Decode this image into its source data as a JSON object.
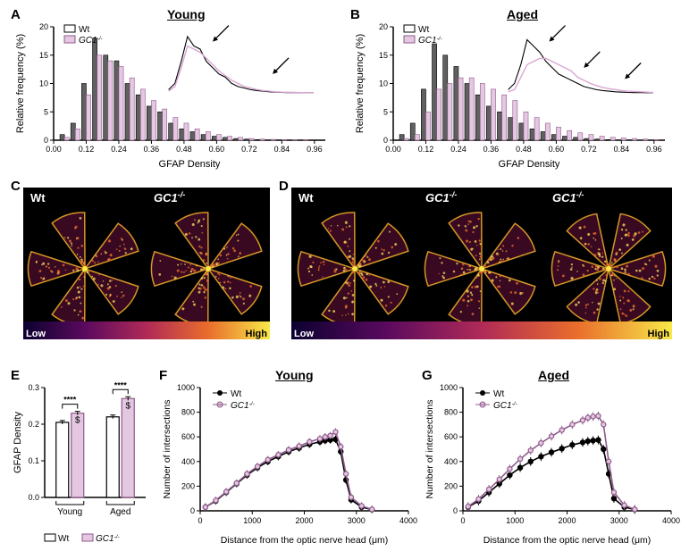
{
  "colors": {
    "wt_fill": "#606060",
    "wt_stroke": "#000000",
    "ko_fill": "#e4c7e0",
    "ko_stroke": "#8e5b8b",
    "wt_line": "#000000",
    "ko_line": "#d9a6d2",
    "image_bg": "#000000",
    "gradient_low": "#0b0030",
    "gradient_mid1": "#5a0a5e",
    "gradient_mid2": "#b02a57",
    "gradient_mid3": "#e96d2c",
    "gradient_high": "#f7e948",
    "petal_inner": "#3d0a24",
    "petal_outer": "#e8a428",
    "petal_speck": "#f3d35a",
    "axis": "#000000",
    "text": "#000000",
    "white": "#ffffff"
  },
  "panelA": {
    "letter": "A",
    "title": "Young",
    "legend": [
      "Wt",
      "GC1-/-"
    ],
    "xlabel": "GFAP Density",
    "ylabel": "Relative frequency (%)",
    "ylim": [
      0,
      20
    ],
    "ytick_step": 5,
    "xticks": [
      0.0,
      0.12,
      0.24,
      0.36,
      0.48,
      0.6,
      0.72,
      0.84,
      0.96
    ],
    "bins": [
      0.04,
      0.08,
      0.12,
      0.16,
      0.2,
      0.24,
      0.28,
      0.32,
      0.36,
      0.4,
      0.44,
      0.48,
      0.52,
      0.56,
      0.6,
      0.64,
      0.68,
      0.72,
      0.76,
      0.8,
      0.84,
      0.88,
      0.92,
      0.96
    ],
    "wt": [
      1,
      3,
      10,
      18,
      15,
      14,
      10,
      8,
      6,
      5,
      3,
      2,
      1.5,
      1,
      0.7,
      0.5,
      0.3,
      0.2,
      0.1,
      0.05,
      0.05,
      0,
      0,
      0
    ],
    "ko": [
      0.5,
      2,
      8,
      15,
      14,
      13,
      11,
      9,
      7,
      5.5,
      4,
      3,
      2,
      1.5,
      1,
      0.7,
      0.5,
      0.3,
      0.2,
      0.15,
      0.1,
      0.05,
      0.05,
      0
    ],
    "inset_arrows": [
      [
        0.32,
        0.82
      ],
      [
        0.7,
        0.3
      ]
    ]
  },
  "panelB": {
    "letter": "B",
    "title": "Aged",
    "legend": [
      "Wt",
      "GC1-/-"
    ],
    "xlabel": "GFAP Density",
    "ylabel": "Relative frequency (%)",
    "ylim": [
      0,
      20
    ],
    "ytick_step": 5,
    "xticks": [
      0.0,
      0.12,
      0.24,
      0.36,
      0.48,
      0.6,
      0.72,
      0.84,
      0.96
    ],
    "bins": [
      0.04,
      0.08,
      0.12,
      0.16,
      0.2,
      0.24,
      0.28,
      0.32,
      0.36,
      0.4,
      0.44,
      0.48,
      0.52,
      0.56,
      0.6,
      0.64,
      0.68,
      0.72,
      0.76,
      0.8,
      0.84,
      0.88,
      0.92,
      0.96
    ],
    "wt": [
      1,
      3,
      9,
      17,
      15,
      13,
      10,
      8,
      6,
      5,
      4,
      3,
      2,
      1.5,
      1,
      0.7,
      0.5,
      0.3,
      0.2,
      0.1,
      0.05,
      0.05,
      0,
      0
    ],
    "ko": [
      0.3,
      1,
      5,
      9,
      10,
      11,
      11,
      10,
      9,
      8,
      7,
      5,
      4,
      3,
      2.3,
      1.7,
      1.3,
      1,
      0.7,
      0.5,
      0.4,
      0.3,
      0.2,
      0.1
    ],
    "inset_arrows": [
      [
        0.3,
        0.82
      ],
      [
        0.52,
        0.4
      ],
      [
        0.78,
        0.22
      ]
    ]
  },
  "panelC": {
    "letter": "C",
    "labels": [
      "Wt",
      "GC1-/-"
    ],
    "low": "Low",
    "high": "High"
  },
  "panelD": {
    "letter": "D",
    "labels": [
      "Wt",
      "GC1-/-",
      "GC1-/-"
    ],
    "low": "Low",
    "high": "High"
  },
  "panelE": {
    "letter": "E",
    "ylabel": "GFAP Density",
    "groups": [
      "Young",
      "Aged"
    ],
    "legend": [
      "Wt",
      "GC1-/-"
    ],
    "ylim": [
      0,
      0.3
    ],
    "yticks": [
      0,
      0.1,
      0.2,
      0.3
    ],
    "values": {
      "Young": {
        "Wt": 0.205,
        "KO": 0.23
      },
      "Aged": {
        "Wt": 0.22,
        "KO": 0.27
      }
    },
    "err": 0.005,
    "stars": [
      "****",
      "****"
    ],
    "dollar": "$"
  },
  "panelF": {
    "letter": "F",
    "title": "Young",
    "xlabel": "Distance from the optic nerve head (μm)",
    "ylabel": "Number of intersections",
    "legend": [
      "Wt",
      "GC1-/-"
    ],
    "xlim": [
      0,
      4000
    ],
    "xtick_step": 1000,
    "ylim": [
      0,
      1000
    ],
    "ytick_step": 200,
    "x": [
      100,
      300,
      500,
      700,
      900,
      1100,
      1300,
      1500,
      1700,
      1900,
      2100,
      2300,
      2400,
      2500,
      2600,
      2700,
      2800,
      2900,
      3100,
      3300
    ],
    "wt": [
      30,
      80,
      150,
      220,
      290,
      350,
      400,
      440,
      480,
      510,
      540,
      560,
      570,
      575,
      580,
      480,
      250,
      90,
      30,
      10
    ],
    "ko": [
      30,
      85,
      155,
      225,
      300,
      360,
      415,
      455,
      495,
      525,
      560,
      585,
      600,
      610,
      640,
      520,
      300,
      110,
      40,
      12
    ],
    "err": 30
  },
  "panelG": {
    "letter": "G",
    "title": "Aged",
    "xlabel": "Distance from the optic nerve head (μm)",
    "ylabel": "Number of intersections",
    "legend": [
      "Wt",
      "GC1-/-"
    ],
    "xlim": [
      0,
      4000
    ],
    "xtick_step": 1000,
    "ylim": [
      0,
      1000
    ],
    "ytick_step": 200,
    "x": [
      100,
      300,
      500,
      700,
      900,
      1100,
      1300,
      1500,
      1700,
      1900,
      2100,
      2300,
      2400,
      2500,
      2600,
      2700,
      2800,
      2900,
      3100,
      3300
    ],
    "wt": [
      30,
      80,
      150,
      220,
      290,
      350,
      400,
      440,
      475,
      505,
      535,
      555,
      565,
      570,
      575,
      500,
      300,
      100,
      30,
      10
    ],
    "ko": [
      35,
      95,
      175,
      255,
      340,
      420,
      490,
      550,
      605,
      655,
      700,
      735,
      755,
      765,
      770,
      700,
      400,
      150,
      45,
      12
    ],
    "err": 35
  }
}
